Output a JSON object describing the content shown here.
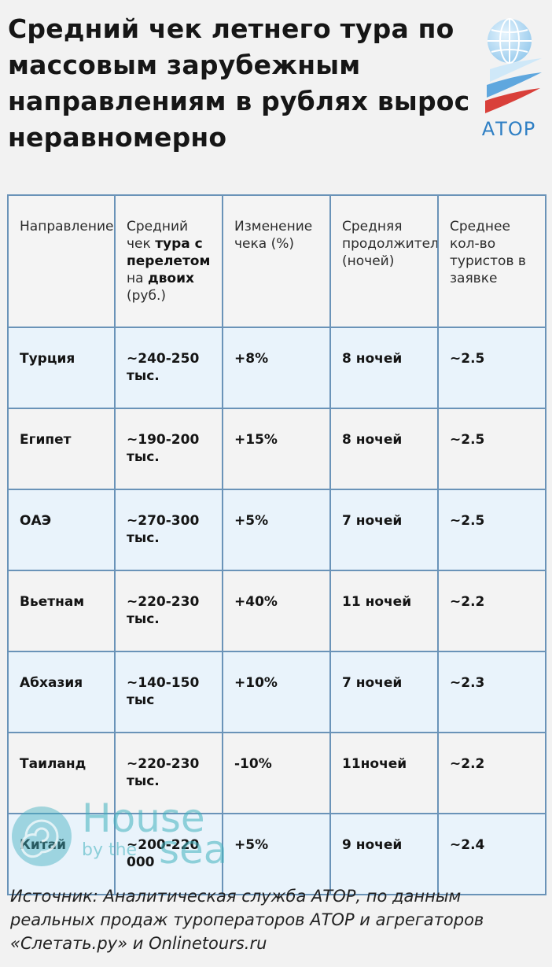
{
  "title": "Средний чек летнего тура по массовым зарубежным направлениям в рублях вырос неравномерно",
  "logo": {
    "name": "АТОР",
    "watermark_line1": "House",
    "watermark_line2_a": "by the",
    "watermark_line2_b": "sea"
  },
  "table": {
    "headers": {
      "direction": "Направление",
      "check_pre": "Средний чек ",
      "check_bold1": "тура с перелетом",
      "check_mid": " на ",
      "check_bold2": "двоих",
      "check_post": " (руб.)",
      "change": "Изменение чека (%)",
      "duration": "Средняя продолжительность (ночей)",
      "tourists": "Среднее кол-во туристов в заявке"
    },
    "rows": [
      {
        "direction": "Турция",
        "check": "~240-250 тыс.",
        "change": "+8%",
        "duration": "8 ночей",
        "tourists": "~2.5"
      },
      {
        "direction": "Египет",
        "check": "~190-200 тыс.",
        "change": "+15%",
        "duration": "8 ночей",
        "tourists": "~2.5"
      },
      {
        "direction": "ОАЭ",
        "check": "~270-300 тыс.",
        "change": "+5%",
        "duration": "7 ночей",
        "tourists": "~2.5"
      },
      {
        "direction": "Вьетнам",
        "check": "~220-230 тыс.",
        "change": "+40%",
        "duration": "11 ночей",
        "tourists": "~2.2"
      },
      {
        "direction": "Абхазия",
        "check": "~140-150 тыс",
        "change": "+10%",
        "duration": "7 ночей",
        "tourists": "~2.3"
      },
      {
        "direction": "Таиланд",
        "check": "~220-230 тыс.",
        "change": "-10%",
        "duration": "11ночей",
        "tourists": "~2.2"
      },
      {
        "direction": "Китай",
        "check": "~200-220 000",
        "change": "+5%",
        "duration": "9 ночей",
        "tourists": "~2.4"
      }
    ]
  },
  "source": "Источник: Аналитическая служба АТОР, по данным реальных продаж туроператоров АТОР и агрегаторов «Слетать.ру» и Onlinetours.ru",
  "colors": {
    "border": "#6a93b8",
    "row_alt": "#e9f3fb",
    "ator_blue": "#2f7fc4",
    "ator_red": "#d9403a"
  }
}
